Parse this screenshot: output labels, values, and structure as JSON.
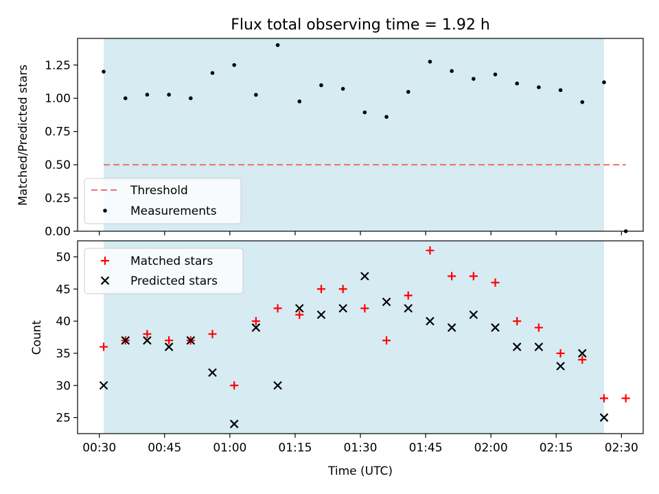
{
  "chart_data": [
    {
      "type": "scatter",
      "title": "Flux total observing time = 1.92 h",
      "xlabel": "",
      "ylabel": "Matched/Predicted stars",
      "ylim": [
        0,
        1.45
      ],
      "yticks": [
        "0.00",
        "0.25",
        "0.50",
        "0.75",
        "1.00",
        "1.25"
      ],
      "shaded_span": [
        "00:31",
        "02:26"
      ],
      "threshold": {
        "name": "Threshold",
        "y": 0.5,
        "color": "#f07878",
        "x_range": [
          "00:31",
          "02:31"
        ]
      },
      "series": [
        {
          "name": "Measurements",
          "marker": "dot",
          "color": "#000000",
          "x": [
            "00:31",
            "00:36",
            "00:41",
            "00:46",
            "00:51",
            "00:56",
            "01:01",
            "01:06",
            "01:11",
            "01:16",
            "01:21",
            "01:26",
            "01:31",
            "01:36",
            "01:41",
            "01:46",
            "01:51",
            "01:56",
            "02:01",
            "02:06",
            "02:11",
            "02:16",
            "02:21",
            "02:26",
            "02:31"
          ],
          "values": [
            1.2,
            1.0,
            1.027,
            1.027,
            1.0,
            1.19,
            1.25,
            1.026,
            1.4,
            0.976,
            1.098,
            1.071,
            0.894,
            0.86,
            1.048,
            1.275,
            1.205,
            1.146,
            1.179,
            1.111,
            1.083,
            1.061,
            0.971,
            1.12,
            0.0
          ]
        }
      ],
      "legend": {
        "location": "lower-left",
        "entries": [
          "Threshold",
          "Measurements"
        ]
      },
      "grid": false
    },
    {
      "type": "scatter",
      "title": "",
      "xlabel": "Time (UTC)",
      "ylabel": "Count",
      "ylim": [
        22.5,
        52.5
      ],
      "yticks": [
        "25",
        "30",
        "35",
        "40",
        "45",
        "50"
      ],
      "xlim": [
        "00:25",
        "02:35"
      ],
      "xticks": [
        "00:30",
        "00:45",
        "01:00",
        "01:15",
        "01:30",
        "01:45",
        "02:00",
        "02:15",
        "02:30"
      ],
      "shaded_span": [
        "00:31",
        "02:26"
      ],
      "x": [
        "00:31",
        "00:36",
        "00:41",
        "00:46",
        "00:51",
        "00:56",
        "01:01",
        "01:06",
        "01:11",
        "01:16",
        "01:21",
        "01:26",
        "01:31",
        "01:36",
        "01:41",
        "01:46",
        "01:51",
        "01:56",
        "02:01",
        "02:06",
        "02:11",
        "02:16",
        "02:21",
        "02:26",
        "02:31"
      ],
      "series": [
        {
          "name": "Matched stars",
          "marker": "plus",
          "color": "#ff0000",
          "values": [
            36,
            37,
            38,
            37,
            37,
            38,
            30,
            40,
            42,
            41,
            45,
            45,
            42,
            37,
            44,
            51,
            47,
            47,
            46,
            40,
            39,
            35,
            34,
            28,
            28
          ]
        },
        {
          "name": "Predicted stars",
          "marker": "x",
          "color": "#000000",
          "values": [
            30,
            37,
            37,
            36,
            37,
            32,
            24,
            39,
            30,
            42,
            41,
            42,
            47,
            43,
            42,
            40,
            39,
            41,
            39,
            36,
            36,
            33,
            35,
            25,
            null
          ]
        }
      ],
      "legend": {
        "location": "upper-left",
        "entries": [
          "Matched stars",
          "Predicted stars"
        ]
      },
      "grid": false,
      "span_color": "#add8e6"
    }
  ]
}
